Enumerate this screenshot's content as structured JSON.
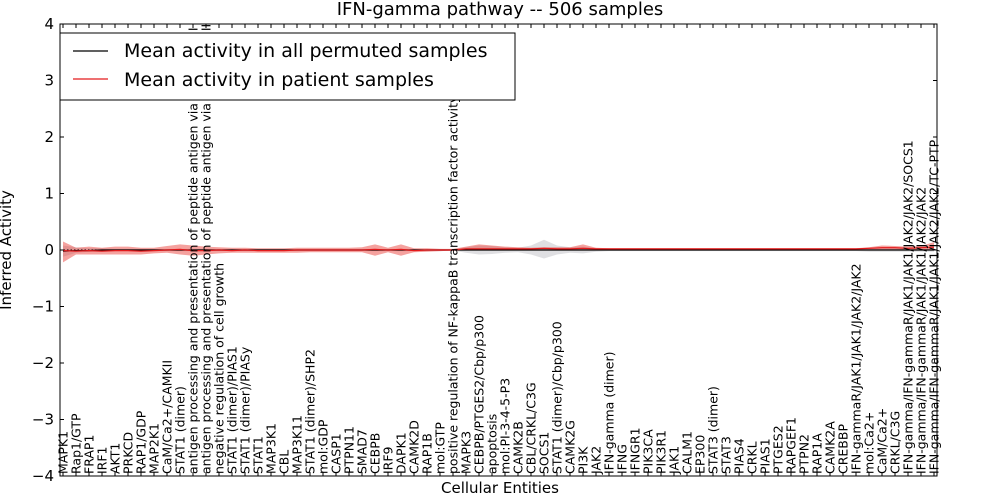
{
  "chart_data": {
    "type": "line",
    "title": "IFN-gamma pathway -- 506 samples",
    "xlabel": "Cellular Entities",
    "ylabel": "Inferred Activity",
    "ylim": [
      -4,
      4
    ],
    "yticks": [
      -4,
      -3,
      -2,
      -1,
      0,
      1,
      2,
      3,
      4
    ],
    "ytick_labels": [
      "−4",
      "−3",
      "−2",
      "−1",
      "0",
      "1",
      "2",
      "3",
      "4"
    ],
    "reference_line_y": 0,
    "legend": {
      "location": "upper-left",
      "entries": [
        {
          "label": "Mean activity in all permuted samples",
          "color": "#000000"
        },
        {
          "label": "Mean activity in patient samples",
          "color": "#e41a1c"
        }
      ]
    },
    "categories": [
      "MAPK1",
      "Rap1/GTP",
      "FRAP1",
      "IRF1",
      "AKT1",
      "PRKCD",
      "RAP1/GDP",
      "MAP2K1",
      "CaM/Ca2+/CAMKII",
      "STAT1 (dimer)",
      "antigen processing and presentation of peptide antigen via MHC class I",
      "antigen processing and presentation of peptide antigen via MHC class II",
      "negative regulation of cell growth",
      "STAT1 (dimer)/PIAS1",
      "STAT1 (dimer)/PIASy",
      "STAT1",
      "MAP3K1",
      "CBL",
      "MAP3K11",
      "STAT1 (dimer)/SHP2",
      "mol:GDP",
      "CASP1",
      "PTPN11",
      "SMAD7",
      "CEBPB",
      "IRF9",
      "DAPK1",
      "CAMK2D",
      "RAP1B",
      "mol:GTP",
      "positive regulation of NF-kappaB transcription factor activity",
      "MAPK3",
      "CEBPB/PTGES2/Cbp/p300",
      "apoptosis",
      "mol:PI-3-4-5-P3",
      "CAMK2B",
      "CBL/CRKL/C3G",
      "SOCS1",
      "STAT1 (dimer)/Cbp/p300",
      "CAMK2G",
      "PI3K",
      "JAK2",
      "IFN-gamma (dimer)",
      "IFNG",
      "IFNGR1",
      "PIK3CA",
      "PIK3R1",
      "JAK1",
      "CALM1",
      "EP300",
      "STAT3 (dimer)",
      "STAT3",
      "PIAS4",
      "CRKL",
      "PIAS1",
      "PTGES2",
      "RAPGEF1",
      "PTPN2",
      "RAP1A",
      "CAMK2A",
      "CREBBP",
      "IFN-gammaR/JAK1/JAK1/JAK2/JAK2",
      "mol:Ca2+",
      "CaM/Ca2+",
      "CRKL/C3G",
      "IFN-gamma/IFN-gammaR/JAK1/JAK1/JAK2/JAK2/SOCS1",
      "IFN-gamma/IFN-gammaR/JAK1/JAK1/JAK2/JAK2",
      "IFN-gamma/IFN-gammaR/JAK1/JAK1/JAK2/JAK2/TC-PTP"
    ],
    "series": [
      {
        "name": "Mean activity in all permuted samples",
        "color": "#000000",
        "values": [
          -0.02,
          -0.01,
          -0.01,
          0.0,
          0.0,
          0.0,
          0.0,
          0.0,
          0.0,
          0.0,
          0.0,
          0.0,
          0.0,
          0.0,
          0.0,
          0.0,
          0.0,
          0.0,
          0.0,
          0.0,
          0.0,
          0.0,
          0.0,
          0.0,
          0.0,
          0.0,
          0.0,
          0.0,
          0.0,
          0.0,
          0.0,
          0.0,
          0.0,
          0.0,
          0.0,
          0.0,
          0.0,
          0.0,
          0.0,
          0.0,
          0.0,
          0.0,
          0.0,
          0.0,
          0.0,
          0.0,
          0.0,
          0.0,
          0.0,
          0.0,
          0.0,
          0.0,
          0.0,
          0.0,
          0.0,
          0.0,
          0.0,
          0.0,
          0.0,
          0.0,
          0.0,
          0.0,
          0.0,
          0.0,
          0.0,
          0.0,
          0.0,
          0.0
        ],
        "band_low": [
          -0.12,
          -0.05,
          -0.03,
          -0.03,
          -0.02,
          -0.02,
          -0.02,
          -0.02,
          -0.02,
          -0.02,
          -0.02,
          -0.02,
          -0.02,
          -0.02,
          -0.02,
          -0.02,
          -0.02,
          -0.02,
          -0.02,
          -0.02,
          -0.02,
          -0.02,
          -0.02,
          -0.02,
          -0.02,
          -0.02,
          -0.02,
          -0.02,
          -0.02,
          -0.02,
          -0.01,
          -0.05,
          -0.08,
          -0.07,
          -0.05,
          -0.04,
          -0.08,
          -0.15,
          -0.08,
          -0.05,
          -0.06,
          -0.03,
          -0.02,
          -0.02,
          -0.02,
          -0.02,
          -0.02,
          -0.02,
          -0.02,
          -0.02,
          -0.02,
          -0.02,
          -0.02,
          -0.02,
          -0.02,
          -0.02,
          -0.02,
          -0.02,
          -0.02,
          -0.02,
          -0.02,
          -0.02,
          -0.03,
          -0.03,
          -0.03,
          -0.03,
          -0.03,
          -0.03
        ],
        "band_high": [
          0.08,
          0.05,
          0.03,
          0.03,
          0.02,
          0.02,
          0.02,
          0.02,
          0.02,
          0.02,
          0.02,
          0.02,
          0.02,
          0.02,
          0.02,
          0.02,
          0.02,
          0.02,
          0.02,
          0.02,
          0.02,
          0.02,
          0.02,
          0.02,
          0.02,
          0.02,
          0.02,
          0.02,
          0.02,
          0.02,
          0.01,
          0.05,
          0.08,
          0.07,
          0.05,
          0.04,
          0.08,
          0.18,
          0.08,
          0.05,
          0.06,
          0.03,
          0.02,
          0.02,
          0.02,
          0.02,
          0.02,
          0.02,
          0.02,
          0.02,
          0.02,
          0.02,
          0.02,
          0.02,
          0.02,
          0.02,
          0.02,
          0.02,
          0.02,
          0.02,
          0.02,
          0.02,
          0.03,
          0.03,
          0.03,
          0.03,
          0.03,
          0.03
        ]
      },
      {
        "name": "Mean activity in patient samples",
        "color": "#e41a1c",
        "values": [
          -0.01,
          -0.02,
          -0.01,
          -0.02,
          -0.01,
          -0.01,
          -0.02,
          -0.01,
          0.0,
          0.01,
          -0.01,
          -0.01,
          0.0,
          -0.01,
          0.0,
          -0.01,
          -0.01,
          -0.01,
          0.0,
          0.0,
          0.0,
          0.0,
          0.0,
          0.0,
          0.01,
          0.0,
          0.01,
          -0.01,
          0.0,
          0.0,
          0.0,
          0.02,
          0.02,
          0.02,
          0.02,
          0.02,
          0.02,
          0.03,
          0.02,
          0.02,
          0.03,
          0.02,
          0.02,
          0.02,
          0.02,
          0.02,
          0.02,
          0.02,
          0.02,
          0.02,
          0.02,
          0.02,
          0.02,
          0.02,
          0.02,
          0.02,
          0.02,
          0.02,
          0.02,
          0.02,
          0.02,
          0.02,
          0.03,
          0.04,
          0.04,
          0.03,
          0.04,
          0.05
        ],
        "band_low": [
          -0.22,
          -0.08,
          -0.08,
          -0.08,
          -0.08,
          -0.08,
          -0.08,
          -0.06,
          -0.05,
          -0.08,
          -0.1,
          -0.08,
          -0.06,
          -0.05,
          -0.05,
          -0.05,
          -0.05,
          -0.05,
          -0.05,
          -0.04,
          -0.04,
          -0.04,
          -0.04,
          -0.04,
          -0.1,
          -0.04,
          -0.1,
          -0.04,
          -0.03,
          -0.02,
          -0.01,
          0.0,
          0.0,
          0.0,
          0.0,
          0.0,
          0.0,
          0.0,
          0.0,
          0.0,
          0.0,
          0.01,
          0.01,
          0.01,
          0.01,
          0.01,
          0.01,
          0.01,
          0.01,
          0.01,
          0.01,
          0.01,
          0.01,
          0.01,
          0.01,
          0.01,
          0.01,
          0.01,
          0.01,
          0.01,
          0.01,
          0.01,
          0.01,
          0.01,
          0.01,
          0.01,
          0.01,
          0.0
        ],
        "band_high": [
          0.15,
          0.04,
          0.06,
          0.04,
          0.06,
          0.06,
          0.04,
          0.04,
          0.07,
          0.1,
          0.08,
          0.06,
          0.05,
          0.04,
          0.04,
          0.03,
          0.03,
          0.03,
          0.04,
          0.04,
          0.04,
          0.04,
          0.04,
          0.05,
          0.1,
          0.04,
          0.1,
          0.03,
          0.03,
          0.02,
          0.02,
          0.06,
          0.1,
          0.08,
          0.06,
          0.05,
          0.04,
          0.05,
          0.05,
          0.05,
          0.1,
          0.04,
          0.03,
          0.03,
          0.03,
          0.03,
          0.03,
          0.03,
          0.03,
          0.03,
          0.03,
          0.03,
          0.03,
          0.03,
          0.03,
          0.03,
          0.03,
          0.03,
          0.03,
          0.03,
          0.03,
          0.03,
          0.05,
          0.08,
          0.07,
          0.06,
          0.07,
          0.14
        ]
      }
    ]
  }
}
